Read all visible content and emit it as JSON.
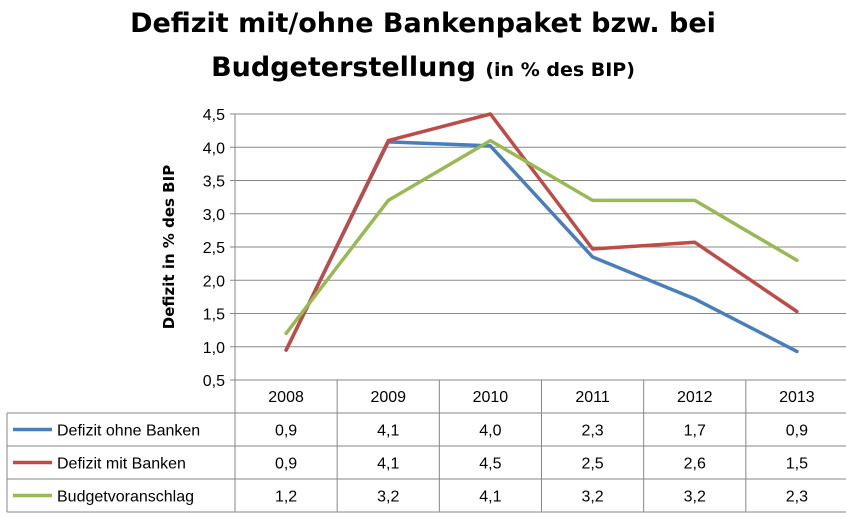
{
  "chart_data": {
    "type": "line",
    "title_line1": "Defizit mit/ohne Bankenpaket bzw. bei",
    "title_line2": "Budgeterstellung",
    "title_unit": "(in % des BIP)",
    "xlabel": "",
    "ylabel": "Defizit in % des BIP",
    "ylim": [
      0.5,
      4.5
    ],
    "yticks": [
      "0,5",
      "1,0",
      "1,5",
      "2,0",
      "2,5",
      "3,0",
      "3,5",
      "4,0",
      "4,5"
    ],
    "ytick_values": [
      0.5,
      1.0,
      1.5,
      2.0,
      2.5,
      3.0,
      3.5,
      4.0,
      4.5
    ],
    "grid": true,
    "legend": "data-table-below",
    "categories": [
      "2008",
      "2009",
      "2010",
      "2011",
      "2012",
      "2013"
    ],
    "series": [
      {
        "name": "Defizit ohne Banken",
        "color": "#4a7ebb",
        "values": [
          0.95,
          4.08,
          4.02,
          2.35,
          1.72,
          0.93
        ],
        "labels": [
          "0,9",
          "4,1",
          "4,0",
          "2,3",
          "1,7",
          "0,9"
        ]
      },
      {
        "name": "Defizit mit Banken",
        "color": "#be4b48",
        "values": [
          0.95,
          4.1,
          4.5,
          2.47,
          2.57,
          1.53
        ],
        "labels": [
          "0,9",
          "4,1",
          "4,5",
          "2,5",
          "2,6",
          "1,5"
        ]
      },
      {
        "name": "Budgetvoranschlag",
        "color": "#98b954",
        "values": [
          1.2,
          3.2,
          4.1,
          3.2,
          3.2,
          2.3
        ],
        "labels": [
          "1,2",
          "3,2",
          "4,1",
          "3,2",
          "3,2",
          "2,3"
        ]
      }
    ]
  }
}
